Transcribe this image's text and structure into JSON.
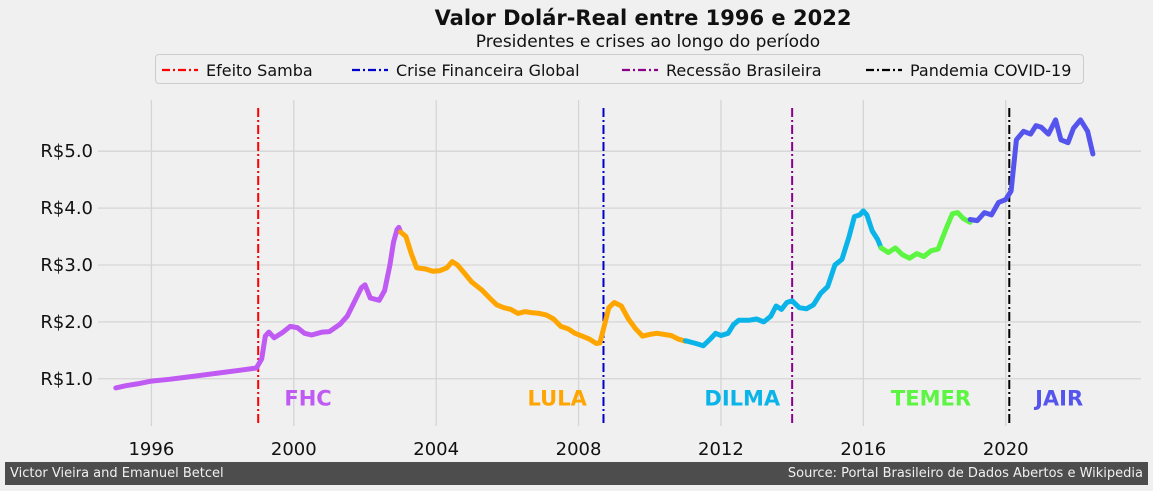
{
  "title": "Valor Dolár-Real entre 1996 e 2022",
  "subtitle": "Presidentes e crises ao longo do período",
  "footer": {
    "left": "Victor Vieira and Emanuel Betcel",
    "right": "Source: Portal Brasileiro de Dados Abertos e Wikipedia"
  },
  "legend": [
    {
      "label": "Efeito Samba",
      "color": "#ff0000"
    },
    {
      "label": "Crise Financeira Global",
      "color": "#0000cc"
    },
    {
      "label": "Recessão Brasileira",
      "color": "#8b008b"
    },
    {
      "label": "Pandemia COVID-19",
      "color": "#000000"
    }
  ],
  "chart_data": {
    "type": "line",
    "title": "Valor Dolár-Real entre 1996 e 2022",
    "subtitle": "Presidentes e crises ao longo do período",
    "xlim": [
      1994.5,
      2023.8
    ],
    "ylim": [
      0.17,
      5.9
    ],
    "x_ticks": [
      1996,
      2000,
      2004,
      2008,
      2012,
      2016,
      2020
    ],
    "x_tick_labels": [
      "1996",
      "2000",
      "2004",
      "2008",
      "2012",
      "2016",
      "2020"
    ],
    "y_ticks": [
      1.0,
      2.0,
      3.0,
      4.0,
      5.0
    ],
    "y_tick_labels": [
      "R$1.0",
      "R$2.0",
      "R$3.0",
      "R$4.0",
      "R$5.0"
    ],
    "grid": true,
    "legend_position": "top-center",
    "series": [
      {
        "name": "FHC",
        "color": "#bf5af2",
        "points": [
          [
            1995.0,
            0.84
          ],
          [
            1995.3,
            0.88
          ],
          [
            1995.6,
            0.91
          ],
          [
            1996.0,
            0.96
          ],
          [
            1996.5,
            0.99
          ],
          [
            1997.0,
            1.03
          ],
          [
            1997.5,
            1.07
          ],
          [
            1998.0,
            1.11
          ],
          [
            1998.5,
            1.15
          ],
          [
            1998.95,
            1.19
          ],
          [
            1999.1,
            1.35
          ],
          [
            1999.2,
            1.75
          ],
          [
            1999.3,
            1.82
          ],
          [
            1999.45,
            1.72
          ],
          [
            1999.7,
            1.82
          ],
          [
            1999.9,
            1.92
          ],
          [
            2000.1,
            1.9
          ],
          [
            2000.3,
            1.8
          ],
          [
            2000.5,
            1.77
          ],
          [
            2000.8,
            1.82
          ],
          [
            2001.0,
            1.83
          ],
          [
            2001.3,
            1.96
          ],
          [
            2001.5,
            2.1
          ],
          [
            2001.7,
            2.35
          ],
          [
            2001.9,
            2.6
          ],
          [
            2002.0,
            2.65
          ],
          [
            2002.15,
            2.42
          ],
          [
            2002.4,
            2.38
          ],
          [
            2002.55,
            2.55
          ],
          [
            2002.7,
            3.0
          ],
          [
            2002.8,
            3.4
          ],
          [
            2002.9,
            3.62
          ],
          [
            2002.95,
            3.66
          ],
          [
            2003.0,
            3.58
          ]
        ]
      },
      {
        "name": "LULA",
        "color": "#ffa500",
        "points": [
          [
            2003.0,
            3.58
          ],
          [
            2003.15,
            3.5
          ],
          [
            2003.3,
            3.2
          ],
          [
            2003.45,
            2.95
          ],
          [
            2003.7,
            2.93
          ],
          [
            2003.9,
            2.89
          ],
          [
            2004.1,
            2.9
          ],
          [
            2004.3,
            2.95
          ],
          [
            2004.45,
            3.06
          ],
          [
            2004.6,
            3.0
          ],
          [
            2004.8,
            2.85
          ],
          [
            2005.0,
            2.7
          ],
          [
            2005.3,
            2.55
          ],
          [
            2005.5,
            2.42
          ],
          [
            2005.7,
            2.3
          ],
          [
            2005.9,
            2.25
          ],
          [
            2006.1,
            2.22
          ],
          [
            2006.3,
            2.15
          ],
          [
            2006.5,
            2.18
          ],
          [
            2006.7,
            2.16
          ],
          [
            2006.9,
            2.15
          ],
          [
            2007.1,
            2.12
          ],
          [
            2007.3,
            2.05
          ],
          [
            2007.5,
            1.92
          ],
          [
            2007.7,
            1.88
          ],
          [
            2007.9,
            1.8
          ],
          [
            2008.1,
            1.75
          ],
          [
            2008.3,
            1.7
          ],
          [
            2008.5,
            1.62
          ],
          [
            2008.6,
            1.63
          ],
          [
            2008.75,
            2.0
          ],
          [
            2008.85,
            2.25
          ],
          [
            2009.0,
            2.34
          ],
          [
            2009.2,
            2.28
          ],
          [
            2009.4,
            2.05
          ],
          [
            2009.6,
            1.88
          ],
          [
            2009.8,
            1.75
          ],
          [
            2010.0,
            1.78
          ],
          [
            2010.2,
            1.8
          ],
          [
            2010.4,
            1.78
          ],
          [
            2010.6,
            1.76
          ],
          [
            2010.8,
            1.7
          ],
          [
            2011.0,
            1.66
          ]
        ]
      },
      {
        "name": "DILMA",
        "color": "#0ab4e8",
        "points": [
          [
            2011.0,
            1.67
          ],
          [
            2011.3,
            1.62
          ],
          [
            2011.5,
            1.58
          ],
          [
            2011.7,
            1.7
          ],
          [
            2011.85,
            1.8
          ],
          [
            2012.0,
            1.76
          ],
          [
            2012.2,
            1.8
          ],
          [
            2012.35,
            1.95
          ],
          [
            2012.5,
            2.03
          ],
          [
            2012.8,
            2.03
          ],
          [
            2013.0,
            2.05
          ],
          [
            2013.2,
            2.0
          ],
          [
            2013.4,
            2.1
          ],
          [
            2013.55,
            2.28
          ],
          [
            2013.7,
            2.22
          ],
          [
            2013.85,
            2.34
          ],
          [
            2014.0,
            2.37
          ],
          [
            2014.2,
            2.25
          ],
          [
            2014.4,
            2.23
          ],
          [
            2014.6,
            2.3
          ],
          [
            2014.8,
            2.5
          ],
          [
            2015.0,
            2.62
          ],
          [
            2015.2,
            3.0
          ],
          [
            2015.4,
            3.1
          ],
          [
            2015.6,
            3.5
          ],
          [
            2015.75,
            3.85
          ],
          [
            2015.9,
            3.88
          ],
          [
            2016.0,
            3.95
          ],
          [
            2016.1,
            3.88
          ],
          [
            2016.25,
            3.6
          ],
          [
            2016.4,
            3.45
          ],
          [
            2016.5,
            3.3
          ]
        ]
      },
      {
        "name": "TEMER",
        "color": "#5cf542",
        "points": [
          [
            2016.5,
            3.3
          ],
          [
            2016.7,
            3.22
          ],
          [
            2016.9,
            3.3
          ],
          [
            2017.1,
            3.18
          ],
          [
            2017.3,
            3.12
          ],
          [
            2017.5,
            3.2
          ],
          [
            2017.7,
            3.15
          ],
          [
            2017.9,
            3.25
          ],
          [
            2018.1,
            3.28
          ],
          [
            2018.3,
            3.6
          ],
          [
            2018.5,
            3.9
          ],
          [
            2018.65,
            3.92
          ],
          [
            2018.8,
            3.82
          ],
          [
            2019.0,
            3.75
          ]
        ]
      },
      {
        "name": "JAIR",
        "color": "#5555ee",
        "points": [
          [
            2019.0,
            3.8
          ],
          [
            2019.2,
            3.78
          ],
          [
            2019.4,
            3.92
          ],
          [
            2019.6,
            3.88
          ],
          [
            2019.8,
            4.1
          ],
          [
            2020.0,
            4.15
          ],
          [
            2020.15,
            4.3
          ],
          [
            2020.3,
            5.2
          ],
          [
            2020.5,
            5.35
          ],
          [
            2020.7,
            5.3
          ],
          [
            2020.85,
            5.45
          ],
          [
            2021.0,
            5.42
          ],
          [
            2021.2,
            5.3
          ],
          [
            2021.4,
            5.55
          ],
          [
            2021.55,
            5.2
          ],
          [
            2021.75,
            5.15
          ],
          [
            2021.9,
            5.4
          ],
          [
            2022.1,
            5.55
          ],
          [
            2022.3,
            5.35
          ],
          [
            2022.45,
            4.95
          ]
        ]
      }
    ],
    "reference_lines": [
      {
        "name": "Efeito Samba",
        "x": 1999.0,
        "color": "#ff0000"
      },
      {
        "name": "Crise Financeira Global",
        "x": 2008.7,
        "color": "#0000cc"
      },
      {
        "name": "Recessão Brasileira",
        "x": 2014.0,
        "color": "#8b008b"
      },
      {
        "name": "Pandemia COVID-19",
        "x": 2020.1,
        "color": "#000000"
      }
    ],
    "annotations": [
      {
        "text": "FHC",
        "x": 2000.4,
        "y": 0.65,
        "color": "#bf5af2"
      },
      {
        "text": "LULA",
        "x": 2007.4,
        "y": 0.65,
        "color": "#ffa500"
      },
      {
        "text": "DILMA",
        "x": 2012.6,
        "y": 0.65,
        "color": "#0ab4e8"
      },
      {
        "text": "TEMER",
        "x": 2017.9,
        "y": 0.65,
        "color": "#5cf542"
      },
      {
        "text": "JAIR",
        "x": 2021.5,
        "y": 0.65,
        "color": "#5555ee"
      }
    ]
  }
}
